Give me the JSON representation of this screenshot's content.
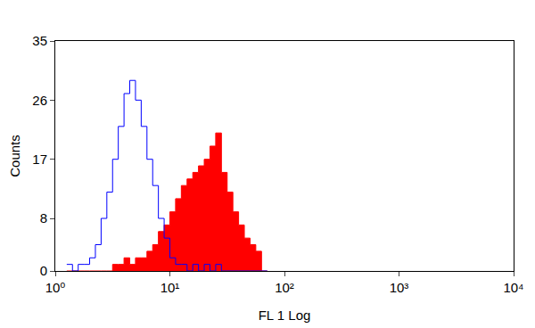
{
  "chart_data": {
    "type": "histogram",
    "x_label": "FL 1 Log",
    "y_label": "Counts",
    "log": "x",
    "grid": false,
    "xlim": [
      1,
      10000
    ],
    "ylim": [
      0,
      35
    ],
    "xticks": [
      {
        "value": 1,
        "label": "10⁰"
      },
      {
        "value": 10,
        "label": "10¹"
      },
      {
        "value": 100,
        "label": "10²"
      },
      {
        "value": 1000,
        "label": "10³"
      },
      {
        "value": 10000,
        "label": "10⁴"
      }
    ],
    "yticks": [
      0,
      8,
      17,
      26,
      35
    ],
    "bins": [
      1.259,
      1.413,
      1.585,
      1.778,
      1.995,
      2.239,
      2.512,
      2.818,
      3.162,
      3.548,
      3.981,
      4.467,
      5.012,
      5.623,
      6.31,
      7.079,
      7.943,
      8.913,
      10.0,
      11.22,
      12.59,
      14.13,
      15.85,
      17.78,
      19.95,
      22.39,
      25.12,
      28.18,
      31.62,
      35.48,
      39.81,
      44.67,
      50.12,
      56.23,
      63.1,
      70.79
    ],
    "series": [
      {
        "type": "line",
        "color": "#0000ff",
        "values": [
          1,
          0,
          1,
          1,
          2,
          4,
          8,
          12,
          17,
          22,
          27,
          29,
          26,
          22,
          17,
          13,
          8,
          5,
          2,
          1,
          1,
          0,
          1,
          0,
          1,
          0,
          1,
          0,
          0,
          0,
          0,
          0,
          0,
          0,
          0
        ]
      },
      {
        "type": "area",
        "color": "#ff0000",
        "values": [
          0,
          0,
          0,
          0,
          0,
          0,
          0,
          0,
          1,
          1,
          2,
          1,
          2,
          2,
          3,
          4,
          6,
          7,
          9,
          11,
          13,
          14,
          15,
          16,
          17,
          19,
          21,
          15,
          12,
          9,
          7,
          5,
          4,
          3,
          0
        ]
      }
    ]
  }
}
